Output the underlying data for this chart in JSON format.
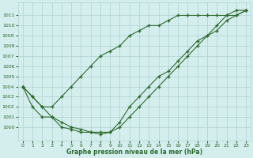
{
  "xlabel": "Graphe pression niveau de la mer (hPa)",
  "background_color": "#d4eeee",
  "grid_color": "#aed0d0",
  "line_color": "#2d6a2d",
  "x_values": [
    0,
    1,
    2,
    3,
    4,
    5,
    6,
    7,
    8,
    9,
    10,
    11,
    12,
    13,
    14,
    15,
    16,
    17,
    18,
    19,
    20,
    21,
    22,
    23
  ],
  "series1": [
    1004,
    1003,
    1002,
    1002,
    1003,
    1004,
    1005,
    1006,
    1007,
    1007.5,
    1008,
    1009,
    1009.5,
    1010,
    1010,
    1010.5,
    1011,
    1011,
    1011,
    1011,
    1011,
    1011,
    1011.5,
    1011.5
  ],
  "series2": [
    1004,
    1003,
    1002,
    1001,
    1000.5,
    1000,
    999.8,
    999.5,
    999.5,
    999.5,
    1000,
    1001,
    1002,
    1003,
    1004,
    1005,
    1006,
    1007,
    1008,
    1009,
    1010,
    1011,
    1011,
    1011.5
  ],
  "series3": [
    1004,
    1002,
    1001,
    1001,
    1000,
    999.8,
    999.5,
    999.5,
    999.3,
    999.5,
    1000.5,
    1002,
    1003,
    1004,
    1005,
    1005.5,
    1006.5,
    1007.5,
    1008.5,
    1009,
    1009.5,
    1010.5,
    1011,
    1011.5
  ],
  "ylim": [
    999,
    1012
  ],
  "yticks": [
    1000,
    1001,
    1002,
    1003,
    1004,
    1005,
    1006,
    1007,
    1008,
    1009,
    1010,
    1011
  ],
  "xlim": [
    -0.5,
    23.5
  ],
  "xticks": [
    0,
    1,
    2,
    3,
    4,
    5,
    6,
    7,
    8,
    9,
    10,
    11,
    12,
    13,
    14,
    15,
    16,
    17,
    18,
    19,
    20,
    21,
    22,
    23
  ]
}
